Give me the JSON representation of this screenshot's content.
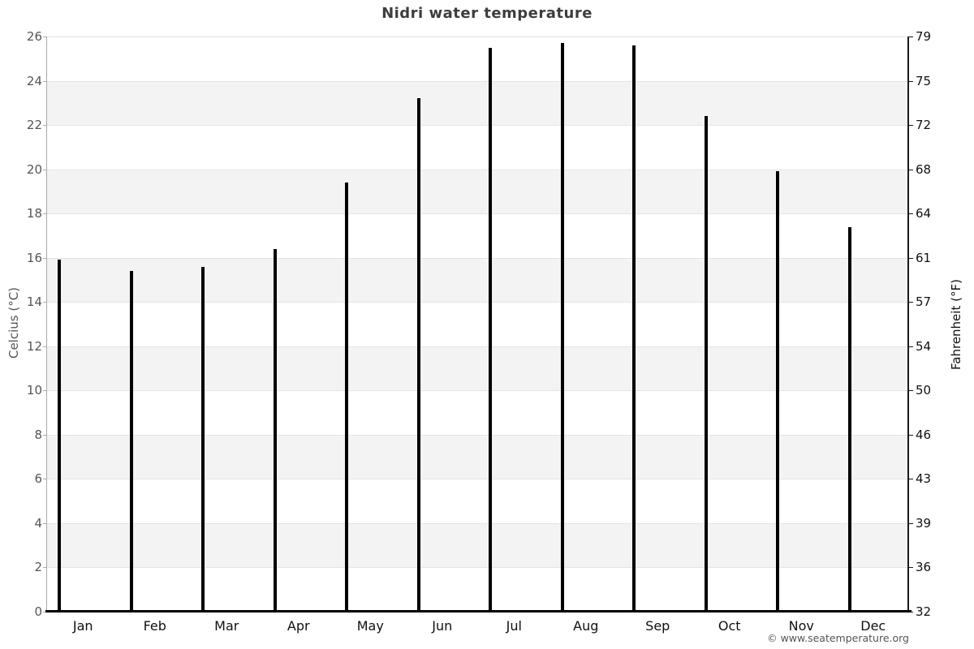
{
  "watermark": "© www.seatemperature.org",
  "chart_data": {
    "type": "bar",
    "title": "Nidri water temperature",
    "categories": [
      "Jan",
      "Feb",
      "Mar",
      "Apr",
      "May",
      "Jun",
      "Jul",
      "Aug",
      "Sep",
      "Oct",
      "Nov",
      "Dec"
    ],
    "values": [
      15.9,
      15.4,
      15.6,
      16.4,
      19.4,
      23.2,
      25.5,
      25.7,
      25.6,
      22.4,
      19.9,
      17.4
    ],
    "unit": "°C",
    "ylabel_left": "Celcius (°C)",
    "ylabel_right": "Fahrenheit (°F)",
    "ylim": [
      0,
      26
    ],
    "yticks_left": [
      26,
      24,
      22,
      20,
      18,
      16,
      14,
      12,
      10,
      8,
      6,
      4,
      2,
      0
    ],
    "yticks_right": [
      79,
      75,
      72,
      68,
      64,
      61,
      57,
      54,
      50,
      46,
      43,
      39,
      36,
      32
    ],
    "xlabel": "",
    "legend": "none",
    "grid": "horizontal gridlines with alternating 2-degree background bands",
    "colors": {
      "bar_gradient_top": "#38c8f7",
      "bar_gradient_bottom": "#063866",
      "bar_border": "#000000",
      "band_shade": "#f3f3f3",
      "gridline": "#e4e4e4",
      "title_text": "#3d3d3d",
      "left_axis_text": "#555555",
      "right_axis_text": "#111111"
    }
  }
}
